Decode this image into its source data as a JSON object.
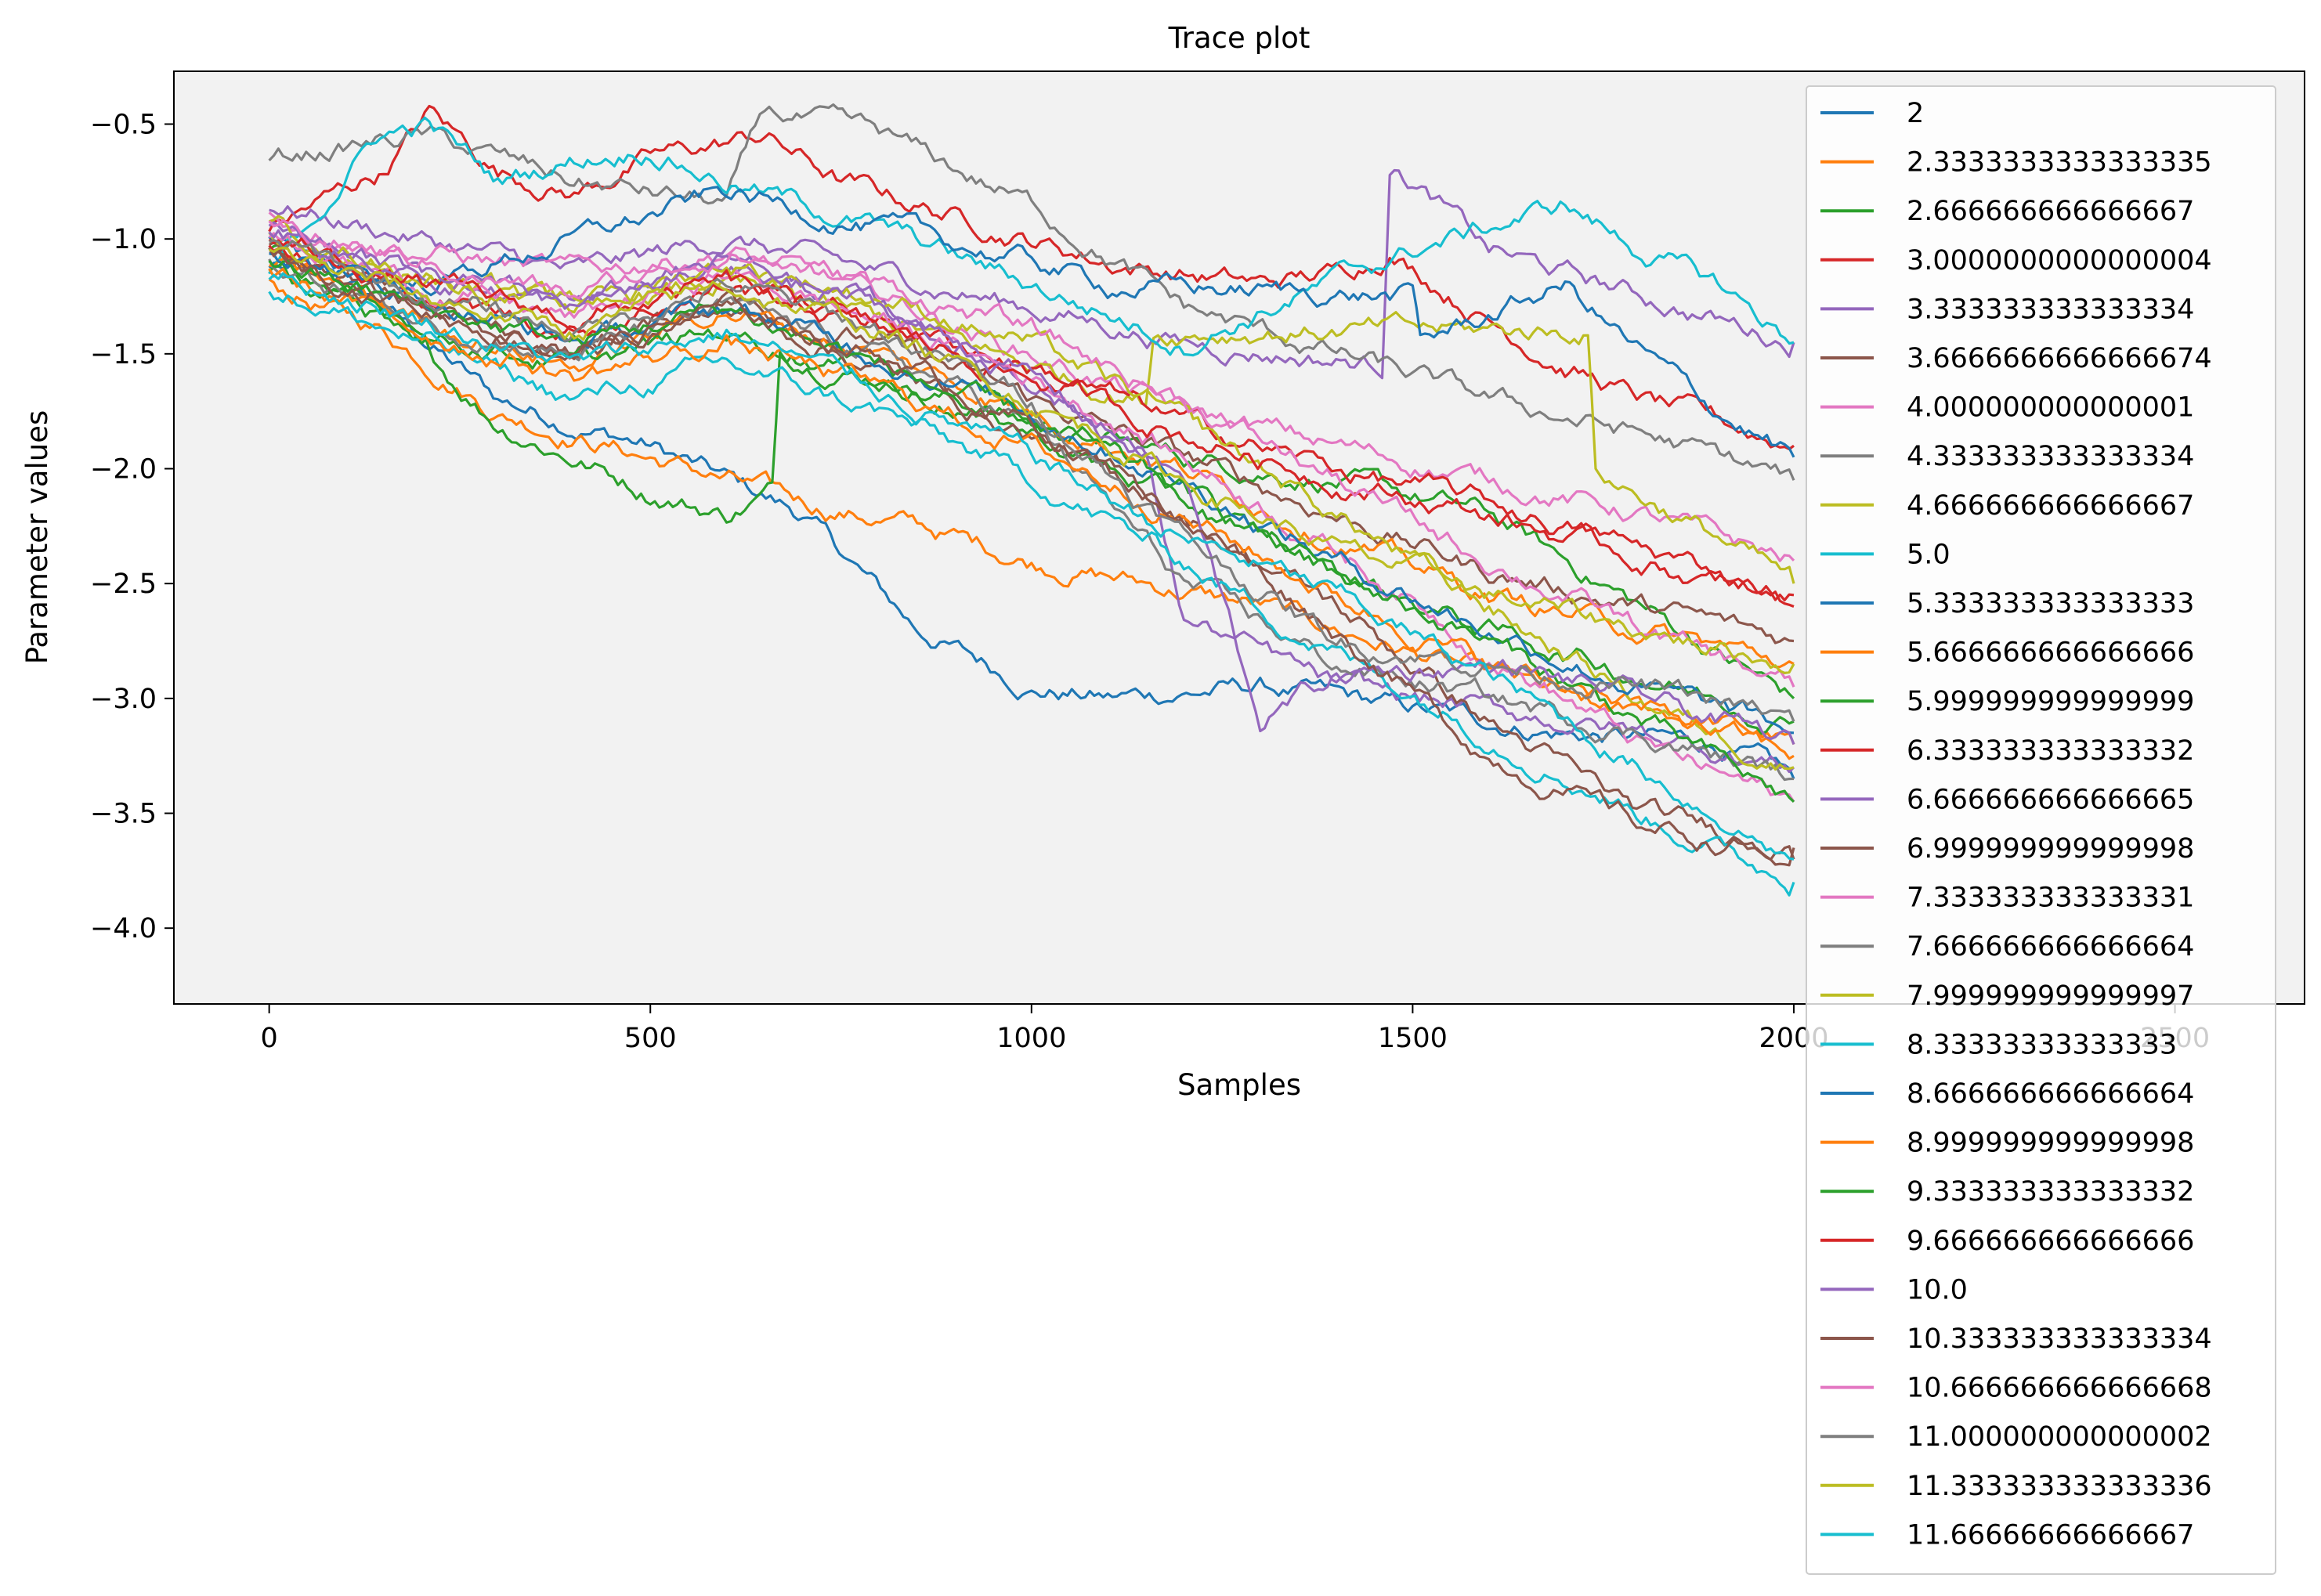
{
  "chart_data": {
    "type": "line",
    "title": "Trace plot",
    "xlabel": "Samples",
    "ylabel": "Parameter values",
    "xlim": [
      -125,
      2670
    ],
    "ylim": [
      -4.33,
      -0.27
    ],
    "xticks": [
      0,
      500,
      1000,
      1500,
      2000,
      2500
    ],
    "xtick_labels": [
      "0",
      "500",
      "1000",
      "1500",
      "2000",
      "2500"
    ],
    "yticks": [
      -0.5,
      -1.0,
      -1.5,
      -2.0,
      -2.5,
      -3.0,
      -3.5,
      -4.0
    ],
    "ytick_labels": [
      "−0.5",
      "−1.0",
      "−1.5",
      "−2.0",
      "−2.5",
      "−3.0",
      "−3.5",
      "−4.0"
    ],
    "grid": false,
    "plot_background": "#f2f2f2",
    "legend_placement": "right, overflowing below the axes",
    "colors": [
      "#1f77b4",
      "#ff7f0e",
      "#2ca02c",
      "#d62728",
      "#9467bd",
      "#8c564b",
      "#e377c2",
      "#7f7f7f",
      "#bcbd22",
      "#17becf"
    ],
    "series": [
      {
        "name": "2",
        "x": [
          0,
          150,
          300,
          500,
          700,
          850,
          1000,
          1100,
          1300,
          1500,
          1700,
          1900,
          2000
        ],
        "values": [
          -1.0,
          -1.3,
          -1.7,
          -1.9,
          -2.2,
          -2.7,
          -2.95,
          -3.0,
          -2.95,
          -3.05,
          -3.15,
          -3.2,
          -3.35
        ]
      },
      {
        "name": "2.3333333333333335",
        "x": [
          0,
          150,
          300,
          500,
          700,
          850,
          1000,
          1150,
          1300,
          1500,
          1700,
          1900,
          2000
        ],
        "values": [
          -1.2,
          -1.4,
          -1.75,
          -1.95,
          -2.15,
          -2.25,
          -2.4,
          -2.5,
          -2.6,
          -2.8,
          -3.0,
          -3.1,
          -3.2
        ]
      },
      {
        "name": "2.666666666666667",
        "x": [
          0,
          150,
          300,
          500,
          600,
          660,
          670,
          800,
          1000,
          1200,
          1400,
          1600,
          1800,
          2000
        ],
        "values": [
          -1.05,
          -1.35,
          -1.8,
          -2.1,
          -2.2,
          -2.1,
          -1.5,
          -1.6,
          -1.8,
          -1.95,
          -2.05,
          -2.2,
          -2.6,
          -3.0
        ]
      },
      {
        "name": "3.0000000000000004",
        "x": [
          0,
          150,
          210,
          300,
          400,
          500,
          650,
          750,
          900,
          1000,
          1100,
          1200,
          1300,
          1400,
          1470,
          1600,
          1700,
          1800,
          2000
        ],
        "values": [
          -0.95,
          -0.7,
          -0.45,
          -0.7,
          -0.8,
          -0.65,
          -0.55,
          -0.75,
          -0.9,
          -1.0,
          -1.1,
          -1.15,
          -1.2,
          -1.15,
          -1.05,
          -1.35,
          -1.55,
          -1.7,
          -1.9
        ]
      },
      {
        "name": "3.333333333333334",
        "x": [
          0,
          200,
          400,
          600,
          800,
          1000,
          1200,
          1460,
          1470,
          1600,
          1800,
          2000
        ],
        "values": [
          -0.85,
          -1.0,
          -1.15,
          -1.0,
          -1.15,
          -1.3,
          -1.45,
          -1.55,
          -0.65,
          -1.05,
          -1.25,
          -1.45
        ]
      },
      {
        "name": "3.6666666666666674",
        "x": [
          0,
          200,
          400,
          600,
          800,
          1000,
          1200,
          1400,
          1600,
          1800,
          2000
        ],
        "values": [
          -1.05,
          -1.3,
          -1.5,
          -1.25,
          -1.45,
          -1.7,
          -1.95,
          -2.2,
          -2.45,
          -2.6,
          -2.75
        ]
      },
      {
        "name": "4.000000000000001",
        "x": [
          0,
          200,
          400,
          600,
          800,
          1000,
          1200,
          1400,
          1600,
          1800,
          2000
        ],
        "values": [
          -0.9,
          -1.05,
          -1.15,
          -1.05,
          -1.25,
          -1.5,
          -1.75,
          -1.9,
          -2.05,
          -2.2,
          -2.4
        ]
      },
      {
        "name": "4.333333333333334",
        "x": [
          0,
          200,
          400,
          600,
          650,
          800,
          1000,
          1200,
          1400,
          1600,
          1800,
          2000
        ],
        "values": [
          -0.65,
          -0.55,
          -0.75,
          -0.85,
          -0.45,
          -0.55,
          -0.85,
          -1.3,
          -1.5,
          -1.7,
          -1.85,
          -2.05
        ]
      },
      {
        "name": "4.666666666666667",
        "x": [
          0,
          200,
          400,
          600,
          800,
          1000,
          1150,
          1160,
          1730,
          1740,
          1900,
          2000
        ],
        "values": [
          -1.0,
          -1.15,
          -1.3,
          -1.2,
          -1.35,
          -1.55,
          -1.7,
          -1.4,
          -1.4,
          -2.0,
          -2.3,
          -2.5
        ]
      },
      {
        "name": "5.0",
        "x": [
          0,
          140,
          210,
          300,
          400,
          500,
          600,
          800,
          1000,
          1200,
          1500,
          1700,
          1800,
          1900,
          2000
        ],
        "values": [
          -1.15,
          -0.55,
          -0.5,
          -0.75,
          -0.65,
          -0.6,
          -0.75,
          -0.95,
          -1.2,
          -1.45,
          -1.05,
          -0.85,
          -1.05,
          -1.2,
          -1.45
        ]
      },
      {
        "name": "5.333333333333333",
        "x": [
          0,
          200,
          400,
          600,
          800,
          1000,
          1100,
          1500,
          1510,
          1700,
          1800,
          1900,
          2000
        ],
        "values": [
          -1.1,
          -1.2,
          -1.0,
          -0.8,
          -0.95,
          -1.1,
          -1.2,
          -1.25,
          -1.45,
          -1.2,
          -1.5,
          -1.75,
          -1.95
        ]
      },
      {
        "name": "5.666666666666666",
        "x": [
          0,
          200,
          400,
          600,
          800,
          1000,
          1200,
          1400,
          1600,
          1800,
          2000
        ],
        "values": [
          -1.1,
          -1.35,
          -1.55,
          -1.3,
          -1.5,
          -1.75,
          -2.0,
          -2.3,
          -2.55,
          -2.7,
          -2.85
        ]
      },
      {
        "name": "5.999999999999999",
        "x": [
          0,
          200,
          400,
          600,
          800,
          1000,
          1200,
          1400,
          1600,
          1800,
          2000
        ],
        "values": [
          -1.15,
          -1.4,
          -1.55,
          -1.4,
          -1.6,
          -1.85,
          -2.15,
          -2.45,
          -2.7,
          -2.9,
          -3.1
        ]
      },
      {
        "name": "6.333333333333332",
        "x": [
          0,
          200,
          400,
          600,
          800,
          1000,
          1200,
          1400,
          1600,
          1800,
          2000
        ],
        "values": [
          -1.0,
          -1.25,
          -1.4,
          -1.2,
          -1.35,
          -1.55,
          -1.8,
          -2.0,
          -2.15,
          -2.35,
          -2.55
        ]
      },
      {
        "name": "6.666666666666665",
        "x": [
          0,
          200,
          400,
          600,
          800,
          1000,
          1150,
          1200,
          1400,
          1600,
          1800,
          2000
        ],
        "values": [
          -0.95,
          -1.15,
          -1.3,
          -1.1,
          -1.3,
          -1.6,
          -1.95,
          -2.65,
          -2.95,
          -3.05,
          -3.15,
          -3.3
        ]
      },
      {
        "name": "6.999999999999998",
        "x": [
          0,
          200,
          400,
          600,
          800,
          1000,
          1200,
          1400,
          1600,
          1800,
          2000
        ],
        "values": [
          -1.05,
          -1.3,
          -1.5,
          -1.3,
          -1.55,
          -1.85,
          -2.2,
          -2.6,
          -3.1,
          -3.5,
          -3.65
        ]
      },
      {
        "name": "7.333333333333331",
        "x": [
          0,
          200,
          400,
          600,
          800,
          1000,
          1200,
          1400,
          1600,
          1800,
          2000
        ],
        "values": [
          -1.0,
          -1.2,
          -1.35,
          -1.15,
          -1.35,
          -1.6,
          -1.95,
          -2.35,
          -2.8,
          -3.2,
          -3.45
        ]
      },
      {
        "name": "7.666666666666664",
        "x": [
          0,
          200,
          400,
          600,
          800,
          1000,
          1200,
          1400,
          1600,
          1800,
          2000
        ],
        "values": [
          -1.1,
          -1.35,
          -1.5,
          -1.3,
          -1.5,
          -1.8,
          -2.5,
          -2.85,
          -3.0,
          -3.15,
          -3.35
        ]
      },
      {
        "name": "7.999999999999997",
        "x": [
          0,
          200,
          400,
          600,
          800,
          1000,
          1200,
          1400,
          1600,
          1800,
          2000
        ],
        "values": [
          -0.95,
          -1.15,
          -1.3,
          -1.1,
          -1.25,
          -1.45,
          -1.8,
          -2.2,
          -2.6,
          -3.0,
          -3.3
        ]
      },
      {
        "name": "8.33333333333333",
        "x": [
          0,
          200,
          400,
          600,
          800,
          1000,
          1200,
          1400,
          1600,
          1800,
          2000
        ],
        "values": [
          -1.2,
          -1.45,
          -1.7,
          -1.55,
          -1.75,
          -2.05,
          -2.4,
          -2.8,
          -3.15,
          -3.5,
          -3.8
        ]
      },
      {
        "name": "8.666666666666664",
        "x": [
          0,
          200,
          400,
          600,
          800,
          1000,
          1200,
          1400,
          1600,
          1800,
          2000
        ],
        "values": [
          -1.05,
          -1.25,
          -1.45,
          -1.3,
          -1.5,
          -1.75,
          -2.05,
          -2.4,
          -2.7,
          -2.95,
          -3.15
        ]
      },
      {
        "name": "8.999999999999998",
        "x": [
          0,
          200,
          400,
          600,
          800,
          1000,
          1200,
          1400,
          1600,
          1800,
          2000
        ],
        "values": [
          -1.15,
          -1.4,
          -1.6,
          -1.45,
          -1.65,
          -1.9,
          -2.2,
          -2.55,
          -2.85,
          -3.05,
          -3.25
        ]
      },
      {
        "name": "9.333333333333332",
        "x": [
          0,
          200,
          400,
          600,
          800,
          1000,
          1200,
          1400,
          1600,
          1800,
          2000
        ],
        "values": [
          -1.1,
          -1.3,
          -1.45,
          -1.3,
          -1.55,
          -1.8,
          -2.1,
          -2.45,
          -2.75,
          -3.1,
          -3.45
        ]
      },
      {
        "name": "9.666666666666666",
        "x": [
          0,
          200,
          400,
          600,
          800,
          1000,
          1200,
          1400,
          1600,
          1800,
          2000
        ],
        "values": [
          -1.0,
          -1.2,
          -1.35,
          -1.2,
          -1.4,
          -1.6,
          -1.85,
          -2.05,
          -2.2,
          -2.4,
          -2.6
        ]
      },
      {
        "name": "10.0",
        "x": [
          0,
          200,
          400,
          600,
          800,
          1000,
          1200,
          1300,
          1400,
          1600,
          1800,
          2000
        ],
        "values": [
          -0.95,
          -1.15,
          -1.3,
          -1.1,
          -1.3,
          -1.6,
          -2.05,
          -3.1,
          -2.9,
          -2.85,
          -3.0,
          -3.2
        ]
      },
      {
        "name": "10.333333333333334",
        "x": [
          0,
          200,
          400,
          600,
          800,
          1000,
          1200,
          1400,
          1600,
          1800,
          2000
        ],
        "values": [
          -1.05,
          -1.3,
          -1.5,
          -1.3,
          -1.5,
          -1.8,
          -2.2,
          -2.7,
          -3.25,
          -3.55,
          -3.7
        ]
      },
      {
        "name": "10.666666666666668",
        "x": [
          0,
          200,
          400,
          600,
          800,
          1000,
          1200,
          1400,
          1600,
          1800,
          2000
        ],
        "values": [
          -0.95,
          -1.1,
          -1.25,
          -1.05,
          -1.2,
          -1.4,
          -1.7,
          -2.05,
          -2.4,
          -2.7,
          -2.95
        ]
      },
      {
        "name": "11.000000000000002",
        "x": [
          0,
          200,
          400,
          600,
          800,
          1000,
          1200,
          1400,
          1600,
          1800,
          2000
        ],
        "values": [
          -1.0,
          -1.25,
          -1.4,
          -1.2,
          -1.4,
          -1.7,
          -2.3,
          -2.75,
          -2.85,
          -2.95,
          -3.1
        ]
      },
      {
        "name": "11.333333333333336",
        "x": [
          0,
          200,
          400,
          600,
          800,
          1000,
          1200,
          1400,
          1600,
          1800,
          2000
        ],
        "values": [
          -1.05,
          -1.25,
          -1.4,
          -1.2,
          -1.4,
          -1.7,
          -2.05,
          -2.35,
          -2.55,
          -2.7,
          -2.85
        ]
      },
      {
        "name": "11.66666666666667",
        "x": [
          0,
          200,
          400,
          600,
          800,
          1000,
          1200,
          1400,
          1600,
          1800,
          2000
        ],
        "values": [
          -1.15,
          -1.35,
          -1.55,
          -1.4,
          -1.65,
          -1.95,
          -2.3,
          -2.55,
          -2.9,
          -3.3,
          -3.7
        ]
      }
    ]
  }
}
